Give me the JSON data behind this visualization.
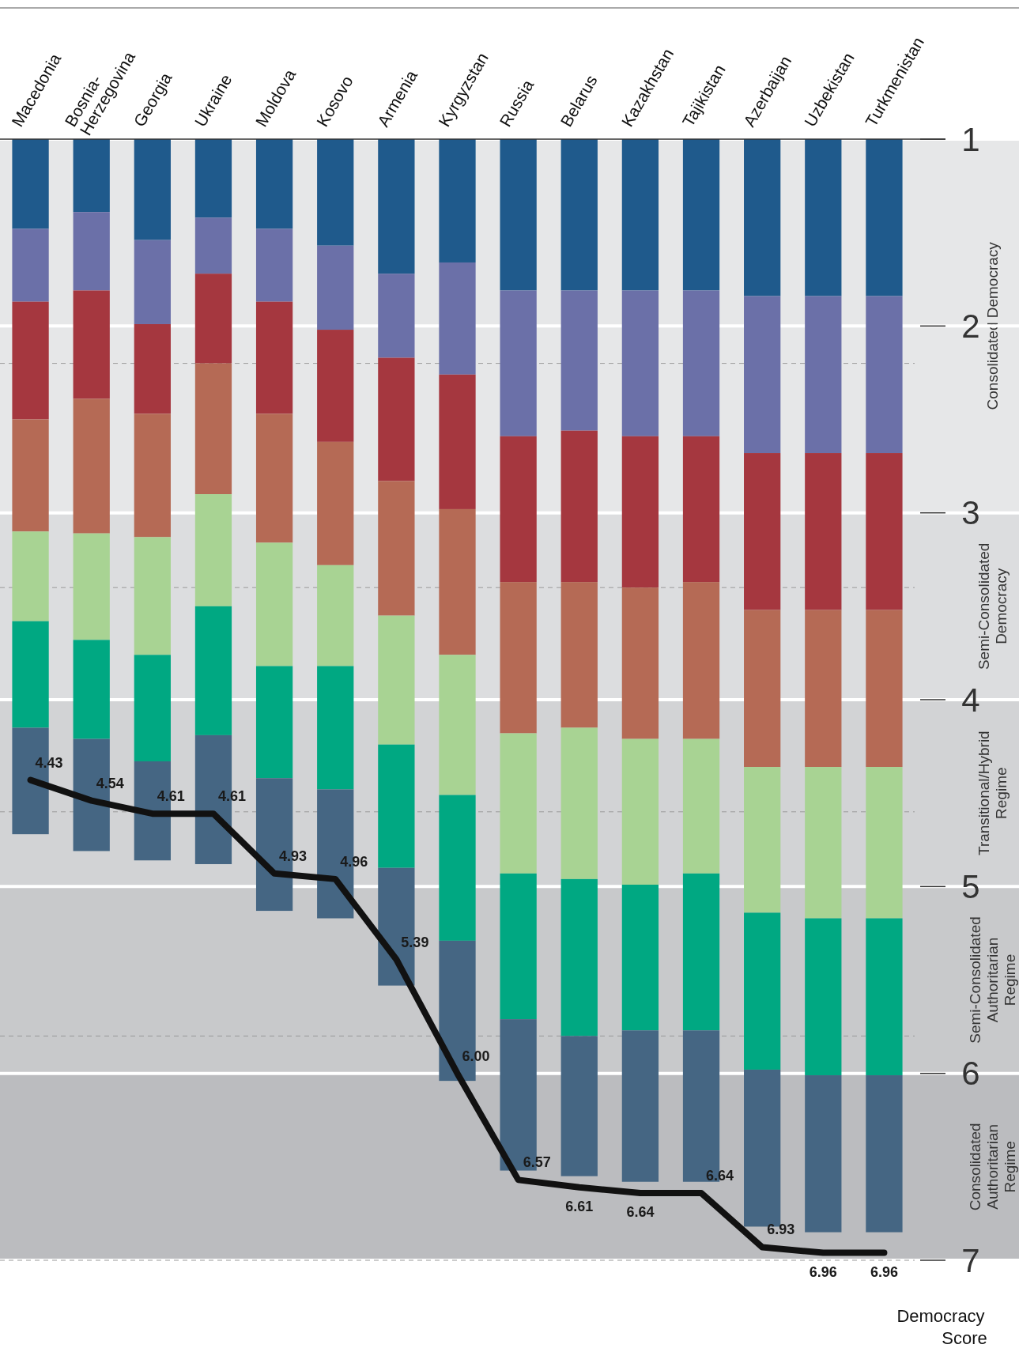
{
  "chart_data": {
    "type": "bar",
    "categories": [
      "Macedonia",
      "Bosnia-\nHerzegovina",
      "Georgia",
      "Ukraine",
      "Moldova",
      "Kosovo",
      "Armenia",
      "Kyrgyzstan",
      "Russia",
      "Belarus",
      "Kazakhstan",
      "Tajikistan",
      "Azerbaijan",
      "Uzbekistan",
      "Turkmenistan"
    ],
    "series": [
      {
        "color": "#1f5a8c",
        "base": [
          1,
          1,
          1,
          1,
          1,
          1,
          1,
          1,
          1,
          1,
          1,
          1,
          1,
          1,
          1
        ],
        "values": [
          0.48,
          0.39,
          0.54,
          0.42,
          0.48,
          0.57,
          0.72,
          0.66,
          0.81,
          0.81,
          0.81,
          0.81,
          0.84,
          0.84,
          0.84
        ]
      },
      {
        "color": "#6b70a8",
        "base": [
          1.48,
          1.39,
          1.54,
          1.42,
          1.48,
          1.57,
          1.72,
          1.66,
          1.81,
          1.81,
          1.81,
          1.81,
          1.84,
          1.84,
          1.84
        ],
        "values": [
          0.39,
          0.42,
          0.45,
          0.3,
          0.39,
          0.45,
          0.45,
          0.6,
          0.78,
          0.75,
          0.78,
          0.78,
          0.84,
          0.84,
          0.84
        ]
      },
      {
        "color": "#a5373f",
        "base": [
          1.87,
          1.81,
          1.99,
          1.72,
          1.87,
          2.02,
          2.17,
          2.26,
          2.59,
          2.56,
          2.59,
          2.59,
          2.68,
          2.68,
          2.68
        ],
        "values": [
          0.63,
          0.58,
          0.48,
          0.48,
          0.6,
          0.6,
          0.66,
          0.72,
          0.78,
          0.81,
          0.81,
          0.78,
          0.84,
          0.84,
          0.84
        ]
      },
      {
        "color": "#b56a55",
        "base": [
          2.5,
          2.39,
          2.47,
          2.2,
          2.47,
          2.62,
          2.83,
          2.98,
          3.37,
          3.37,
          3.4,
          3.37,
          3.52,
          3.52,
          3.52
        ],
        "values": [
          0.6,
          0.72,
          0.66,
          0.7,
          0.69,
          0.66,
          0.72,
          0.78,
          0.81,
          0.78,
          0.81,
          0.84,
          0.84,
          0.84,
          0.84
        ]
      },
      {
        "color": "#a8d393",
        "base": [
          3.1,
          3.11,
          3.13,
          2.9,
          3.16,
          3.28,
          3.55,
          3.76,
          4.18,
          4.15,
          4.21,
          4.21,
          4.36,
          4.36,
          4.36
        ],
        "values": [
          0.48,
          0.57,
          0.63,
          0.6,
          0.66,
          0.54,
          0.69,
          0.75,
          0.75,
          0.81,
          0.78,
          0.72,
          0.78,
          0.81,
          0.81
        ]
      },
      {
        "color": "#00a882",
        "base": [
          3.58,
          3.68,
          3.76,
          3.5,
          3.82,
          3.82,
          4.24,
          4.51,
          4.93,
          4.96,
          4.99,
          4.93,
          5.14,
          5.17,
          5.17
        ],
        "values": [
          0.57,
          0.53,
          0.57,
          0.69,
          0.6,
          0.66,
          0.66,
          0.78,
          0.78,
          0.84,
          0.78,
          0.84,
          0.84,
          0.84,
          0.84
        ]
      },
      {
        "color": "#456683",
        "base": [
          4.15,
          4.21,
          4.33,
          4.19,
          4.42,
          4.48,
          4.9,
          5.29,
          5.71,
          5.8,
          5.77,
          5.77,
          5.98,
          6.01,
          6.01
        ],
        "values": [
          0.57,
          0.6,
          0.53,
          0.69,
          0.71,
          0.69,
          0.63,
          0.75,
          0.81,
          0.75,
          0.81,
          0.81,
          0.84,
          0.84,
          0.84
        ]
      },
      {
        "type": "line",
        "color": "#111111",
        "values": [
          4.43,
          4.54,
          4.61,
          4.61,
          4.93,
          4.96,
          5.39,
          6.0,
          6.57,
          6.61,
          6.64,
          6.64,
          6.93,
          6.96,
          6.96
        ],
        "value_labels": [
          "4.43",
          "4.54",
          "4.61",
          "4.61",
          "4.93",
          "4.96",
          "5.39",
          "6.00",
          "6.57",
          "6.61",
          "6.64",
          "6.64",
          "6.93",
          "6.96",
          "6.96"
        ]
      }
    ],
    "grid": "y",
    "ylim": [
      7,
      1
    ],
    "yticks": [
      1,
      2,
      3,
      4,
      5,
      6,
      7
    ],
    "ylabel": "Democracy Score",
    "bands": [
      {
        "axis": "y",
        "from": 1,
        "to": 3,
        "label": "Consolidated Democracy",
        "color": "#e6e7e8"
      },
      {
        "axis": "y",
        "from": 3,
        "to": 4,
        "label": "Semi-Consolidated\nDemocracy",
        "color": "#dcdddf"
      },
      {
        "axis": "y",
        "from": 4,
        "to": 5,
        "label": "Transitional/Hybrid\nRegime",
        "color": "#d2d3d5"
      },
      {
        "axis": "y",
        "from": 5,
        "to": 6,
        "label": "Semi-Consolidated\nAuthoritarian\nRegime",
        "color": "#c8c9cb"
      },
      {
        "axis": "y",
        "from": 6,
        "to": 7,
        "label": "Consolidated\nAuthoritarian\nRegime",
        "color": "#bbbcbf"
      }
    ],
    "ref_lines": [
      {
        "axis": "y",
        "value": 2.2,
        "line_style": "dashed",
        "color": "#9a9a9a"
      },
      {
        "axis": "y",
        "value": 3.4,
        "line_style": "dashed",
        "color": "#9a9a9a"
      },
      {
        "axis": "y",
        "value": 4.6,
        "line_style": "dashed",
        "color": "#9a9a9a"
      },
      {
        "axis": "y",
        "value": 5.8,
        "line_style": "dashed",
        "color": "#9a9a9a"
      },
      {
        "axis": "y",
        "value": 7,
        "line_style": "dashed",
        "color": "#9a9a9a"
      }
    ]
  }
}
